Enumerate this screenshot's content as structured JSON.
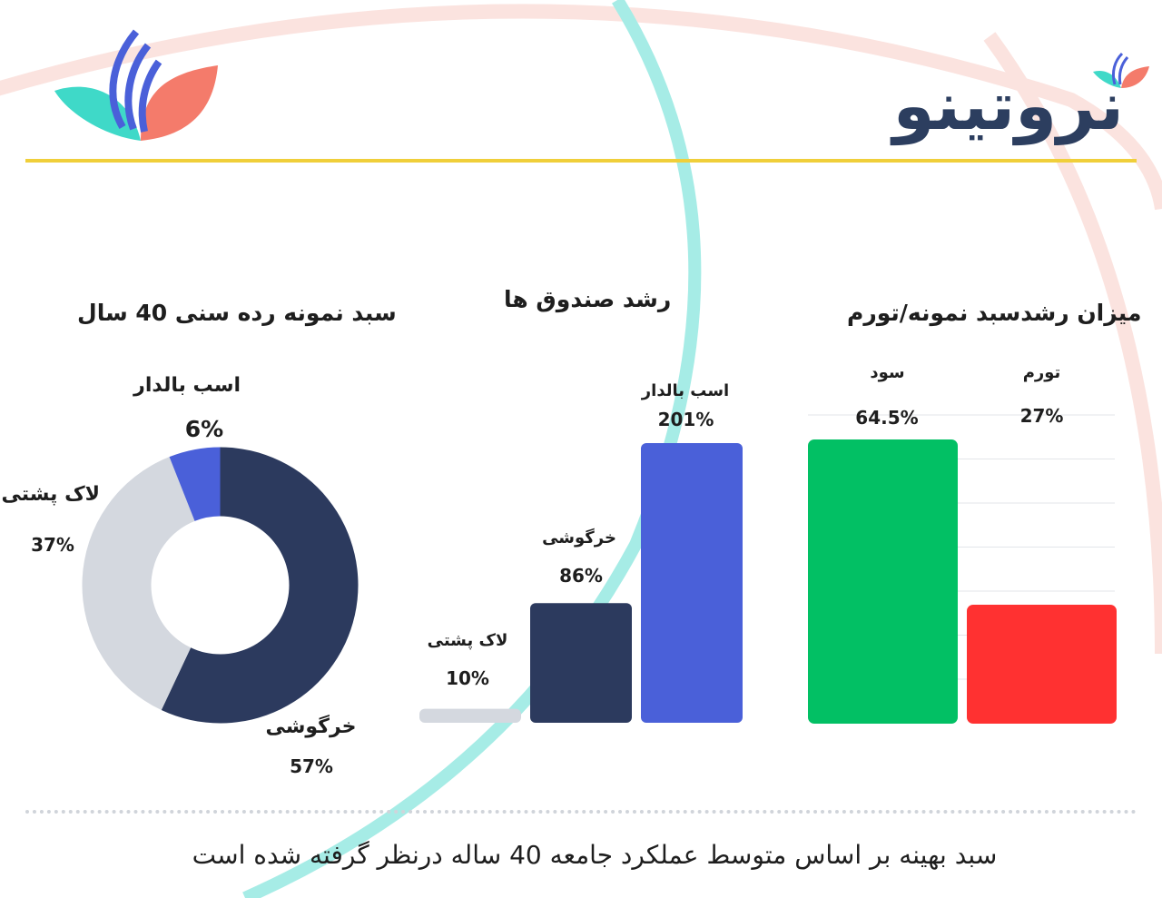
{
  "brand": {
    "name": "نروتینو"
  },
  "footer": {
    "note": "سبد بهینه بر اساس متوسط عملکرد جامعه 40 ساله درنظر گرفته شده است"
  },
  "colors": {
    "navy": "#2c3a5e",
    "blue": "#4a60d9",
    "light_gray": "#d4d8df",
    "green": "#02c064",
    "red": "#ff3131",
    "yellow": "#f0cf3a",
    "teal": "#3fd9c8",
    "coral": "#f47b6b"
  },
  "icons": {
    "logo": "leaf-logo-icon"
  },
  "chart_data": [
    {
      "type": "pie",
      "title": "سبد نمونه رده سنی 40 سال",
      "slices": [
        {
          "label": "خرگوشی",
          "value": 57,
          "display": "57%",
          "color": "#2c3a5e"
        },
        {
          "label": "لاک پشتی",
          "value": 37,
          "display": "37%",
          "color": "#d4d8df"
        },
        {
          "label": "اسب بالدار",
          "value": 6,
          "display": "6%",
          "color": "#4a60d9"
        }
      ]
    },
    {
      "type": "bar",
      "title": "رشد صندوق ها",
      "categories": [
        "لاک پشتی",
        "خرگوشی",
        "اسب بالدار"
      ],
      "values": [
        10,
        86,
        201
      ],
      "displays": [
        "10%",
        "86%",
        "201%"
      ],
      "colors": [
        "#d4d8df",
        "#2c3a5e",
        "#4a60d9"
      ],
      "ylim": [
        0,
        201
      ]
    },
    {
      "type": "bar",
      "title": "میزان رشدسبد نمونه/تورم",
      "categories": [
        "سود",
        "تورم"
      ],
      "values": [
        64.5,
        27
      ],
      "displays": [
        "64.5%",
        "27%"
      ],
      "colors": [
        "#02c064",
        "#ff3131"
      ],
      "ylim": [
        0,
        64.5
      ],
      "grid": true
    }
  ]
}
